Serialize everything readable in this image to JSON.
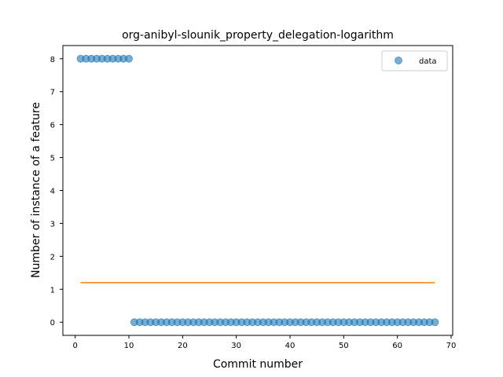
{
  "chart_data": {
    "type": "scatter",
    "title": "org-anibyl-slounik_property_delegation-logarithm",
    "xlabel": "Commit number",
    "ylabel": "Number of instance of a feature",
    "xlim": [
      -2.3,
      70.3
    ],
    "ylim": [
      -0.4,
      8.4
    ],
    "xticks": [
      0,
      10,
      20,
      30,
      40,
      50,
      60,
      70
    ],
    "yticks": [
      0,
      1,
      2,
      3,
      4,
      5,
      6,
      7,
      8
    ],
    "grid": false,
    "legend": {
      "placement": "top-right",
      "entries": [
        "data"
      ]
    },
    "series": [
      {
        "name": "data",
        "kind": "scatter",
        "color": "#1f77b4",
        "x": [
          1,
          2,
          3,
          4,
          5,
          6,
          7,
          8,
          9,
          10,
          11,
          12,
          13,
          14,
          15,
          16,
          17,
          18,
          19,
          20,
          21,
          22,
          23,
          24,
          25,
          26,
          27,
          28,
          29,
          30,
          31,
          32,
          33,
          34,
          35,
          36,
          37,
          38,
          39,
          40,
          41,
          42,
          43,
          44,
          45,
          46,
          47,
          48,
          49,
          50,
          51,
          52,
          53,
          54,
          55,
          56,
          57,
          58,
          59,
          60,
          61,
          62,
          63,
          64,
          65,
          66,
          67
        ],
        "y": [
          8,
          8,
          8,
          8,
          8,
          8,
          8,
          8,
          8,
          8,
          0,
          0,
          0,
          0,
          0,
          0,
          0,
          0,
          0,
          0,
          0,
          0,
          0,
          0,
          0,
          0,
          0,
          0,
          0,
          0,
          0,
          0,
          0,
          0,
          0,
          0,
          0,
          0,
          0,
          0,
          0,
          0,
          0,
          0,
          0,
          0,
          0,
          0,
          0,
          0,
          0,
          0,
          0,
          0,
          0,
          0,
          0,
          0,
          0,
          0,
          0,
          0,
          0,
          0,
          0,
          0,
          0
        ]
      },
      {
        "kind": "line",
        "color": "#ff7f0e",
        "x": [
          1,
          67
        ],
        "y": [
          1.2,
          1.2
        ]
      }
    ]
  }
}
